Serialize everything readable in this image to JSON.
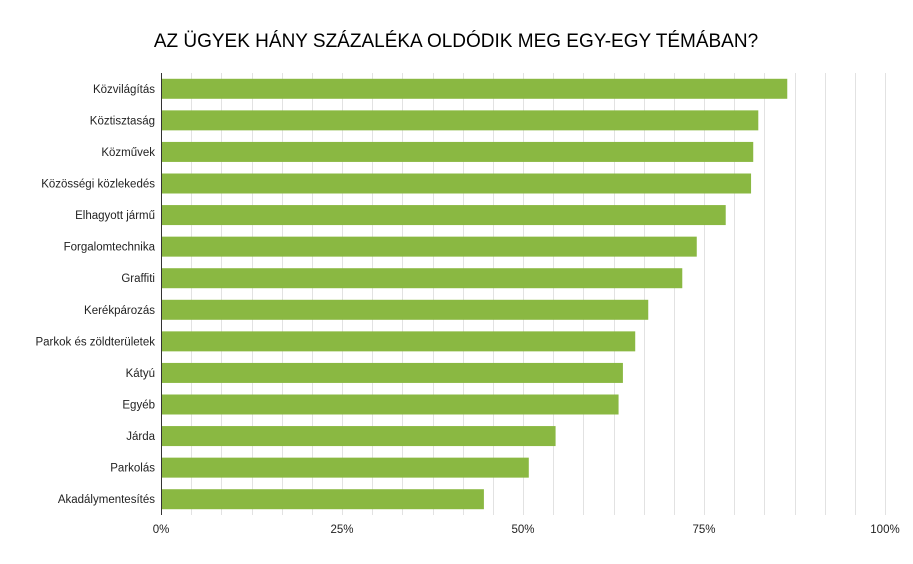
{
  "chart_data": {
    "type": "bar",
    "orientation": "horizontal",
    "title": "AZ ÜGYEK HÁNY SZÁZALÉKA OLDÓDIK MEG EGY-EGY TÉMÁBAN?",
    "xlabel": "",
    "ylabel": "",
    "xlim": [
      0,
      100
    ],
    "x_ticks": [
      0,
      25,
      50,
      75,
      100
    ],
    "x_tick_labels": [
      "0%",
      "25%",
      "50%",
      "75%",
      "100%"
    ],
    "minor_grid_step": 4.1667,
    "grid": true,
    "bar_color": "#8ab842",
    "categories": [
      "Közvilágítás",
      "Köztisztaság",
      "Közművek",
      "Közösségi közlekedés",
      "Elhagyott jármű",
      "Forgalomtechnika",
      "Graffiti",
      "Kerékpározás",
      "Parkok és zöldterületek",
      "Kátyú",
      "Egyéb",
      "Járda",
      "Parkolás",
      "Akadálymentesítés"
    ],
    "values": [
      86.5,
      82.5,
      81.8,
      81.5,
      78.0,
      74.0,
      72.0,
      67.3,
      65.5,
      63.8,
      63.2,
      54.5,
      50.8,
      44.6
    ]
  }
}
